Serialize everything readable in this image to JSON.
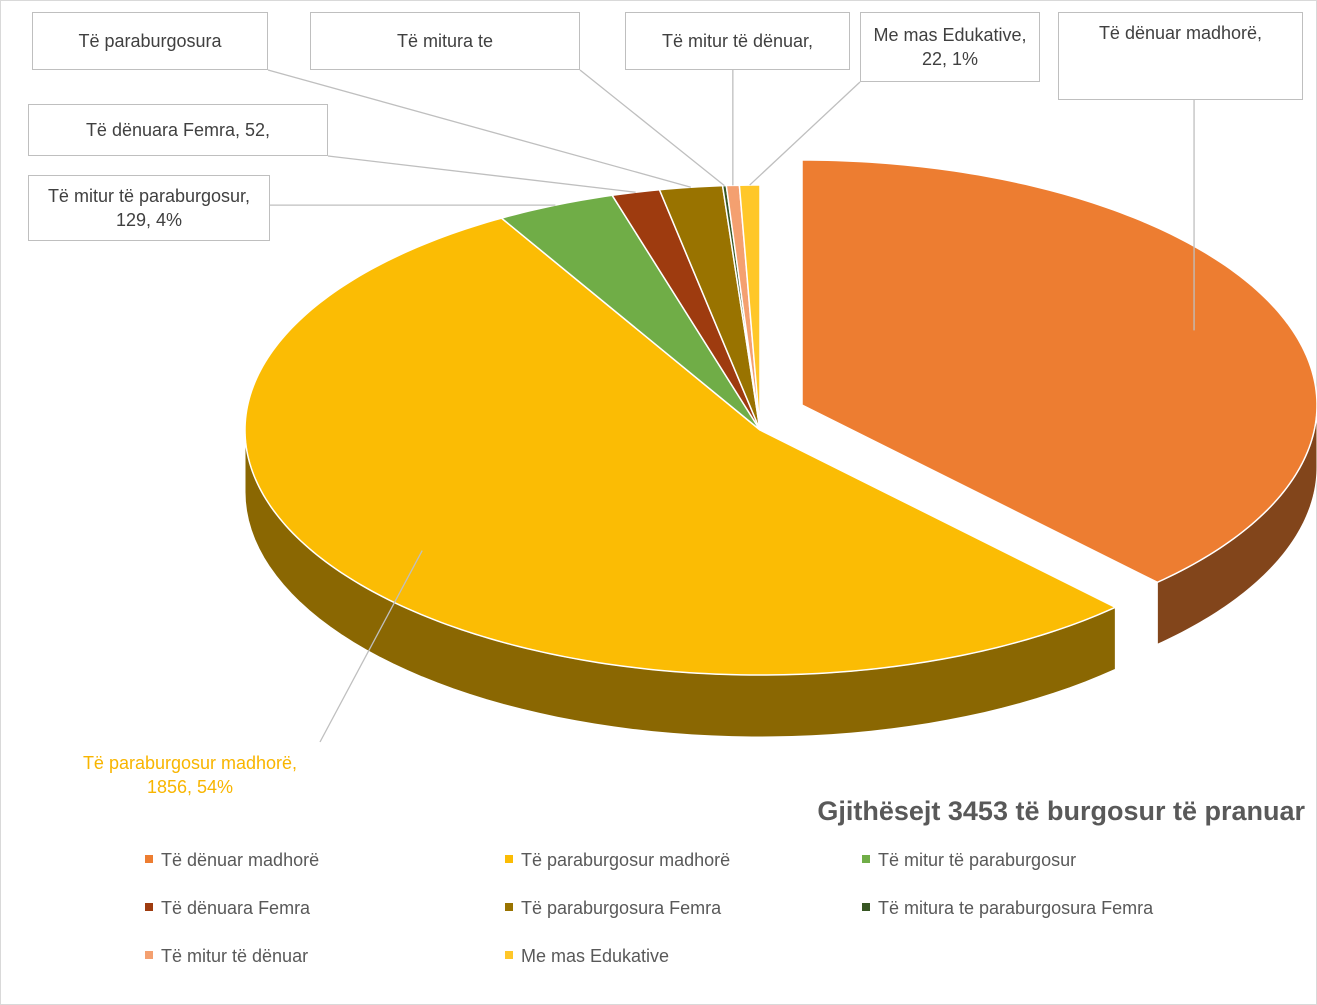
{
  "chart_data": {
    "type": "pie3d",
    "title": "Gjithësejt 3453 të burgosur të pranuar",
    "categories": [
      "Të dënuar madhorë",
      "Të paraburgosur madhorë",
      "Të mitur të paraburgosur",
      "Të dënuara Femra",
      "Të paraburgosura Femra",
      "Të mitura te paraburgosura Femra",
      "Të mitur të dënuar",
      "Me mas Edukative"
    ],
    "values": [
      1308,
      1856,
      129,
      52,
      68,
      4,
      14,
      22
    ],
    "value_labels": [
      "Të dënuar madhorë,",
      "Të paraburgosur madhorë, 1856, 54%",
      "Të mitur të paraburgosur, 129, 4%",
      "Të dënuara Femra, 52,",
      "Të paraburgosura",
      "Të mitura te",
      "Të mitur të dënuar,",
      "Me mas Edukative, 22, 1%"
    ],
    "colors": [
      "#ed7d31",
      "#fbbc04",
      "#70ad47",
      "#9e3b0f",
      "#997300",
      "#375623",
      "#f4a070",
      "#ffc729"
    ],
    "legend": "bottom"
  }
}
